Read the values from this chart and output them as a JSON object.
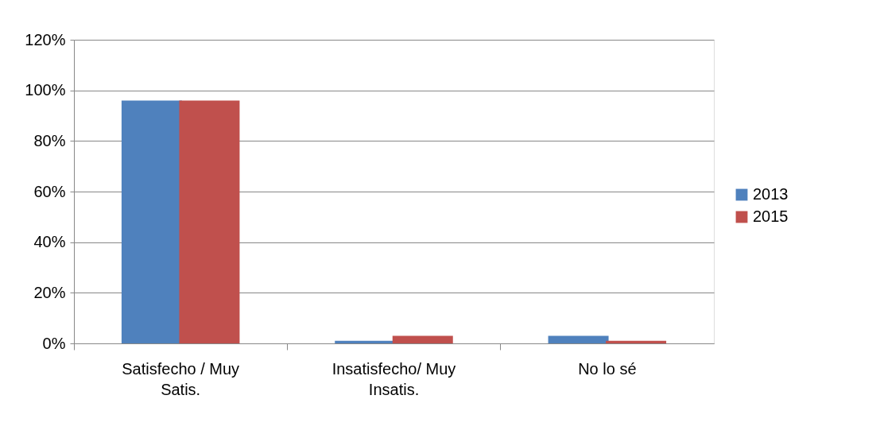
{
  "chart_data": {
    "type": "bar",
    "categories": [
      "Satisfecho / Muy Satis.",
      "Insatisfecho/ Muy Insatis.",
      "No lo sé"
    ],
    "series": [
      {
        "name": "2013",
        "color": "#4f81bd",
        "values": [
          0.96,
          0.01,
          0.03
        ]
      },
      {
        "name": "2015",
        "color": "#c0504d",
        "values": [
          0.96,
          0.03,
          0.01
        ]
      }
    ],
    "ylim": [
      0,
      1.2
    ],
    "yticks": [
      {
        "value": 0,
        "label": "0%"
      },
      {
        "value": 0.2,
        "label": "20%"
      },
      {
        "value": 0.4,
        "label": "40%"
      },
      {
        "value": 0.6,
        "label": "60%"
      },
      {
        "value": 0.8,
        "label": "80%"
      },
      {
        "value": 1.0,
        "label": "100%"
      },
      {
        "value": 1.2,
        "label": "120%"
      }
    ],
    "grid": "y",
    "legend": "right"
  }
}
